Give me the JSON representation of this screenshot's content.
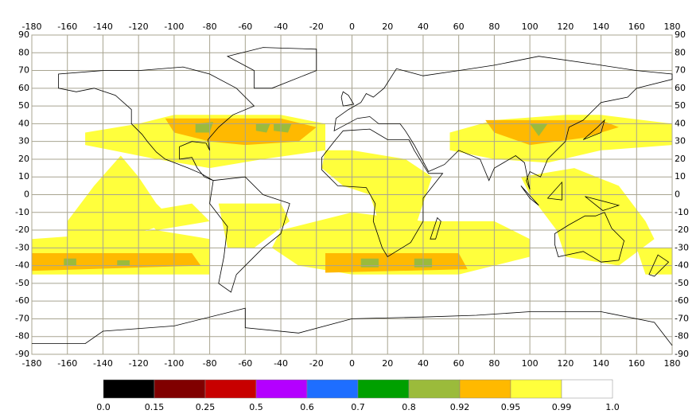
{
  "map": {
    "xlim": [
      -180,
      180
    ],
    "ylim": [
      -90,
      90
    ],
    "xticks": [
      -180,
      -160,
      -140,
      -120,
      -100,
      -80,
      -60,
      -40,
      -20,
      0,
      20,
      40,
      60,
      80,
      100,
      120,
      140,
      160,
      180
    ],
    "yticks": [
      -90,
      -80,
      -70,
      -60,
      -50,
      -40,
      -30,
      -20,
      -10,
      0,
      10,
      20,
      30,
      40,
      50,
      60,
      70,
      80,
      90
    ],
    "grid": true
  },
  "colorbar": {
    "colors": [
      "#000000",
      "#800000",
      "#c80000",
      "#b400ff",
      "#1e6eff",
      "#00a000",
      "#9bbb3b",
      "#ffb900",
      "#ffff3c",
      "#ffffff"
    ],
    "ticks": [
      {
        "value": 0,
        "label": "0.0"
      },
      0.15,
      0.25,
      0.5,
      0.6,
      0.7,
      0.8,
      0.92,
      0.95,
      0.99,
      {
        "value": 1,
        "label": "1.0"
      }
    ]
  }
}
